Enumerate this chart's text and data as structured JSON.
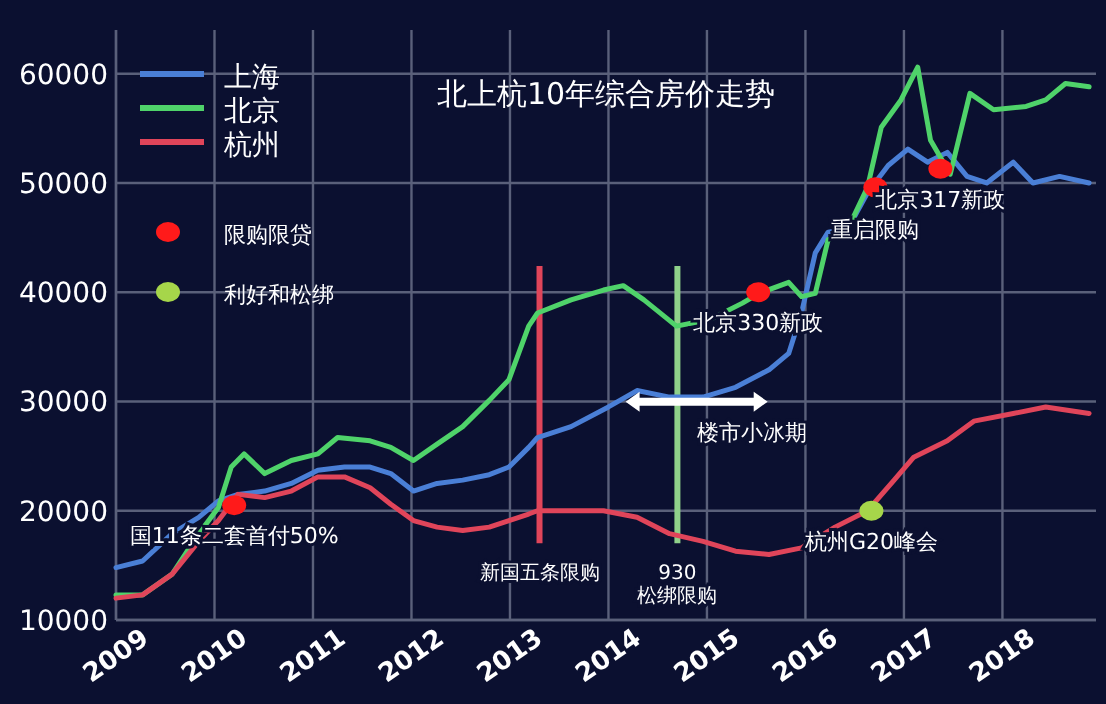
{
  "chart_data": {
    "type": "line",
    "title": "北上杭10年综合房价走势",
    "xlim": [
      2009,
      2018.95
    ],
    "ylim": [
      10000,
      64000
    ],
    "xticks": [
      2009,
      2010,
      2011,
      2012,
      2013,
      2014,
      2015,
      2016,
      2017,
      2018
    ],
    "yticks": [
      10000,
      20000,
      30000,
      40000,
      50000,
      60000
    ],
    "grid": true,
    "legend": "top left",
    "series": [
      {
        "name": "上海",
        "color": "#4a7fd6",
        "x": [
          2009,
          2009.27,
          2009.57,
          2009.84,
          2010.04,
          2010.24,
          2010.51,
          2010.78,
          2011.05,
          2011.32,
          2011.58,
          2011.79,
          2012.02,
          2012.26,
          2012.52,
          2012.79,
          2012.99,
          2013.19,
          2013.28,
          2013.62,
          2014,
          2014.29,
          2014.62,
          2014.96,
          2015.29,
          2015.63,
          2015.83,
          2015.96,
          2016.1,
          2016.23,
          2016.43,
          2016.63,
          2016.84,
          2017.04,
          2017.24,
          2017.44,
          2017.64,
          2017.84,
          2018.11,
          2018.31,
          2018.58,
          2018.88
        ],
        "values": [
          14800,
          15400,
          17900,
          19400,
          20900,
          21500,
          21800,
          22500,
          23700,
          24000,
          24000,
          23400,
          21800,
          22500,
          22800,
          23300,
          24000,
          25800,
          26700,
          27700,
          29500,
          31000,
          30400,
          30400,
          31300,
          32900,
          34400,
          38100,
          43600,
          45500,
          45800,
          49100,
          51600,
          53100,
          51900,
          52800,
          50600,
          50000,
          51900,
          50000,
          50600,
          50000
        ]
      },
      {
        "name": "北京",
        "color": "#4fd36a",
        "x": [
          2009,
          2009.27,
          2009.57,
          2009.84,
          2010.04,
          2010.17,
          2010.3,
          2010.51,
          2010.78,
          2011.05,
          2011.25,
          2011.58,
          2011.79,
          2012.02,
          2012.26,
          2012.52,
          2012.79,
          2012.99,
          2013.19,
          2013.28,
          2013.62,
          2013.95,
          2014.15,
          2014.36,
          2014.69,
          2015.03,
          2015.36,
          2015.53,
          2015.83,
          2015.96,
          2016.1,
          2016.23,
          2016.43,
          2016.63,
          2016.77,
          2016.97,
          2017.14,
          2017.27,
          2017.47,
          2017.67,
          2017.91,
          2018.24,
          2018.44,
          2018.64,
          2018.88
        ],
        "values": [
          12300,
          12300,
          14200,
          17900,
          20300,
          24000,
          25200,
          23400,
          24600,
          25200,
          26700,
          26400,
          25800,
          24600,
          26100,
          27700,
          30100,
          32000,
          36900,
          38100,
          39300,
          40200,
          40600,
          39300,
          36900,
          37500,
          39000,
          39900,
          40900,
          39600,
          39900,
          44800,
          45800,
          49600,
          55100,
          57600,
          60600,
          53900,
          50800,
          58200,
          56700,
          57000,
          57600,
          59100,
          58800
        ]
      },
      {
        "name": "杭州",
        "color": "#e0455a",
        "x": [
          2009,
          2009.27,
          2009.57,
          2009.84,
          2010.04,
          2010.24,
          2010.51,
          2010.78,
          2011.05,
          2011.32,
          2011.58,
          2011.79,
          2012.02,
          2012.26,
          2012.52,
          2012.79,
          2012.99,
          2013.19,
          2013.28,
          2013.95,
          2014.29,
          2014.62,
          2014.96,
          2015.29,
          2015.63,
          2015.96,
          2016.3,
          2016.63,
          2016.9,
          2017.1,
          2017.44,
          2017.71,
          2018.11,
          2018.44,
          2018.88
        ],
        "values": [
          12000,
          12300,
          14200,
          17200,
          19100,
          21500,
          21200,
          21800,
          23100,
          23100,
          22100,
          20600,
          19100,
          18500,
          18200,
          18500,
          19100,
          19700,
          20000,
          20000,
          19400,
          17900,
          17200,
          16300,
          16000,
          16600,
          18500,
          20000,
          22800,
          24900,
          26400,
          28200,
          28900,
          29500,
          28900
        ]
      },
      {
        "name": "限购限贷",
        "type": "scatter",
        "marker": "circle",
        "color": "#ff1a1a",
        "x": [
          2010.2,
          2015.52,
          2016.71,
          2017.37
        ],
        "values": [
          20500,
          40000,
          49600,
          51300
        ]
      },
      {
        "name": "利好和松绑",
        "type": "scatter",
        "marker": "circle",
        "color": "#a6d64a",
        "x": [
          2016.67
        ],
        "values": [
          20000
        ]
      }
    ],
    "ref_lines": [
      {
        "axis": "x",
        "value": 2013.3,
        "label": "新国五条限购",
        "color": "#e0455a"
      },
      {
        "axis": "x",
        "value": 2014.7,
        "label": "930\n松绑限购",
        "color": "#8fd18a"
      }
    ],
    "annotations": [
      "楼市小冰期",
      {
        "text": "国11条二套首付50%",
        "x": 2010.2,
        "y": 20500
      },
      {
        "text": "北京330新政",
        "x": 2015.52,
        "y": 40000
      },
      {
        "text": "北京317新政",
        "x": 2017.37,
        "y": 51300
      },
      {
        "text": "重启限购",
        "x": 2016.71,
        "y": 49600
      },
      {
        "text": "杭州G20峰会",
        "x": 2016.67,
        "y": 20000
      }
    ]
  }
}
